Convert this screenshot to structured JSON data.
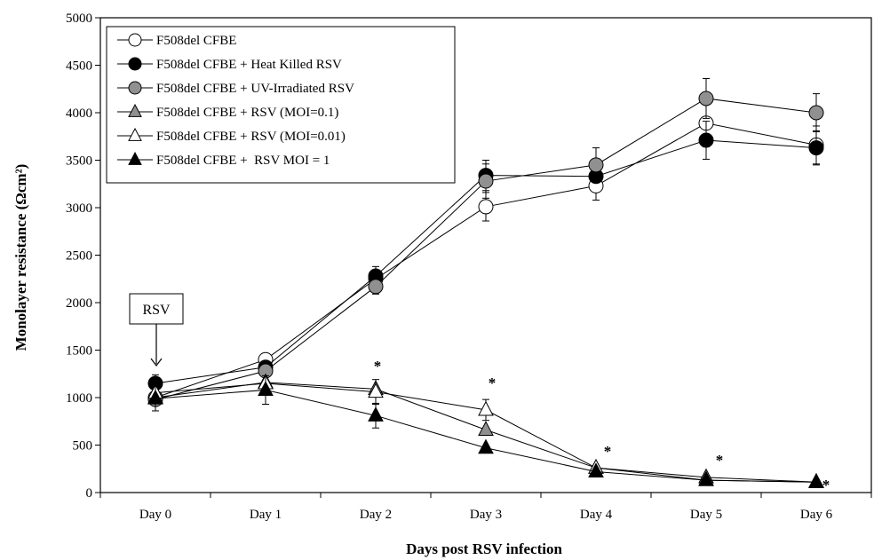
{
  "chart_data": {
    "type": "line",
    "xlabel": "Days post RSV infection",
    "ylabel": "Monolayer  resistance (Ωcm²)",
    "categories": [
      "Day 0",
      "Day 1",
      "Day 2",
      "Day 3",
      "Day 4",
      "Day 5",
      "Day 6"
    ],
    "ylim": [
      0,
      5000
    ],
    "yticks": [
      0,
      500,
      1000,
      1500,
      2000,
      2500,
      3000,
      3500,
      4000,
      4500,
      5000
    ],
    "grid": false,
    "legend_position": "top-left",
    "series": [
      {
        "name": "F508del CFBE",
        "marker": "circle",
        "fill": "#ffffff",
        "values": [
          1000,
          1400,
          2250,
          3010,
          3230,
          3890,
          3660
        ],
        "errors": [
          0,
          0,
          0,
          150,
          150,
          250,
          200
        ]
      },
      {
        "name": "F508del CFBE + Heat Killed RSV",
        "marker": "circle",
        "fill": "#000000",
        "values": [
          1150,
          1320,
          2280,
          3340,
          3330,
          3710,
          3630
        ],
        "errors": [
          90,
          0,
          100,
          160,
          0,
          200,
          180
        ]
      },
      {
        "name": "F508del CFBE + UV-Irradiated RSV",
        "marker": "circle",
        "fill": "#909090",
        "values": [
          980,
          1280,
          2170,
          3280,
          3450,
          4150,
          4000
        ],
        "errors": [
          0,
          0,
          80,
          180,
          180,
          210,
          200
        ]
      },
      {
        "name": "F508del CFBE + RSV (MOI=0.1)",
        "marker": "triangle",
        "fill": "#909090",
        "values": [
          1000,
          1160,
          1090,
          660,
          260,
          160,
          110
        ],
        "errors": [
          0,
          0,
          0,
          0,
          0,
          0,
          0
        ]
      },
      {
        "name": "F508del CFBE + RSV (MOI=0.01)",
        "marker": "triangle",
        "fill": "#ffffff",
        "values": [
          1050,
          1150,
          1060,
          870,
          260,
          130,
          110
        ],
        "errors": [
          0,
          0,
          130,
          110,
          0,
          0,
          0
        ]
      },
      {
        "name": "F508del CFBE +  RSV MOI = 1",
        "marker": "triangle",
        "fill": "#000000",
        "values": [
          990,
          1080,
          810,
          470,
          220,
          130,
          110
        ],
        "errors": [
          130,
          150,
          130,
          0,
          0,
          0,
          0
        ]
      }
    ],
    "annotations": {
      "rsv_box": "RSV",
      "significance": [
        {
          "category": "Day 2",
          "label": "*",
          "value": 1300
        },
        {
          "category": "Day 3",
          "label": "*",
          "value": 1130
        },
        {
          "category": "Day 4",
          "label": "*",
          "value": 470
        },
        {
          "category": "Day 5",
          "label": "*",
          "value": 380
        },
        {
          "category": "Day 6",
          "label": "*",
          "value": 330
        }
      ]
    }
  }
}
